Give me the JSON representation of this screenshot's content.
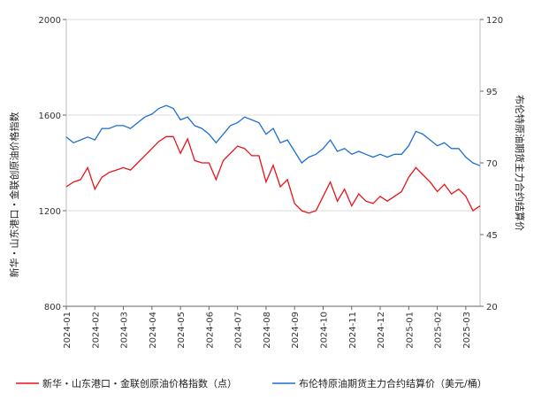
{
  "chart_data": {
    "type": "line",
    "y_title": "新华・山东港口・金联创原油价格指数",
    "y2_title": "布伦特原油期货主力合约结算价",
    "categories": [
      "2024-01",
      null,
      null,
      null,
      "2024-02",
      null,
      null,
      null,
      "2024-03",
      null,
      null,
      null,
      "2024-04",
      null,
      null,
      null,
      "2024-05",
      null,
      null,
      null,
      "2024-06",
      null,
      null,
      null,
      "2024-07",
      null,
      null,
      null,
      "2024-08",
      null,
      null,
      null,
      "2024-09",
      null,
      null,
      null,
      "2024-10",
      null,
      null,
      null,
      "2024-11",
      null,
      null,
      null,
      "2024-12",
      null,
      null,
      null,
      "2025-01",
      null,
      null,
      null,
      "2025-02",
      null,
      null,
      null,
      "2025-03",
      null,
      null
    ],
    "series": [
      {
        "name": "新华・山东港口・金联创原油价格指数（点）",
        "color": "#e8131a",
        "axis": "y",
        "values": [
          1300,
          1320,
          1330,
          1380,
          1290,
          1340,
          1360,
          1370,
          1380,
          1370,
          1400,
          1430,
          1460,
          1490,
          1510,
          1510,
          1440,
          1500,
          1410,
          1400,
          1400,
          1330,
          1410,
          1440,
          1470,
          1460,
          1430,
          1430,
          1320,
          1390,
          1300,
          1330,
          1230,
          1200,
          1190,
          1200,
          1260,
          1320,
          1240,
          1290,
          1220,
          1270,
          1240,
          1230,
          1260,
          1240,
          1260,
          1280,
          1340,
          1380,
          1350,
          1320,
          1280,
          1310,
          1270,
          1290,
          1260,
          1200,
          1220
        ]
      },
      {
        "name": "布伦特原油期货主力合约结算价（美元/桶）",
        "color": "#1f6fd1",
        "axis": "y2",
        "values": [
          79,
          77,
          78,
          79,
          78,
          82,
          82,
          83,
          83,
          82,
          84,
          86,
          87,
          89,
          90,
          89,
          85,
          86,
          83,
          82,
          80,
          77,
          80,
          83,
          84,
          86,
          85,
          84,
          80,
          82,
          77,
          78,
          74,
          70,
          72,
          73,
          75,
          78,
          74,
          75,
          73,
          74,
          73,
          72,
          73,
          72,
          73,
          73,
          76,
          81,
          80,
          78,
          76,
          77,
          75,
          75,
          72,
          70,
          69
        ]
      }
    ],
    "ylim": [
      800,
      2000
    ],
    "yticks": [
      800,
      1200,
      1600,
      2000
    ],
    "y2lim": [
      20,
      120
    ],
    "y2ticks": [
      20,
      45,
      70,
      95,
      120
    ],
    "grid": true
  }
}
